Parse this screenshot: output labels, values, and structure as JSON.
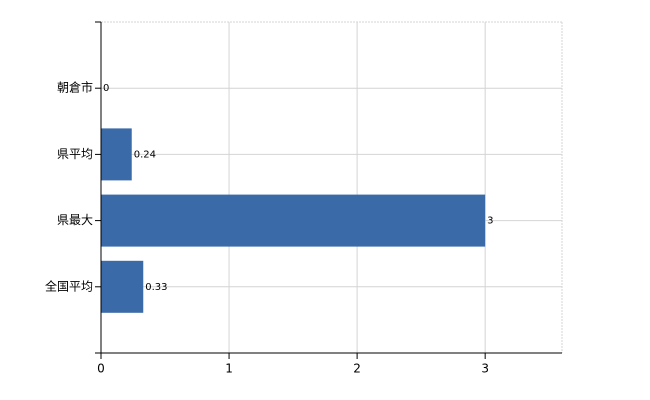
{
  "chart_data": {
    "type": "hbar",
    "categories": [
      "朝倉市",
      "県平均",
      "県最大",
      "全国平均"
    ],
    "values": [
      0,
      0.24,
      3,
      0.33
    ],
    "color": "#3a6aa8",
    "xlim": [
      0,
      3.6
    ],
    "xticks": [
      0,
      1,
      2,
      3
    ],
    "grid": true
  }
}
